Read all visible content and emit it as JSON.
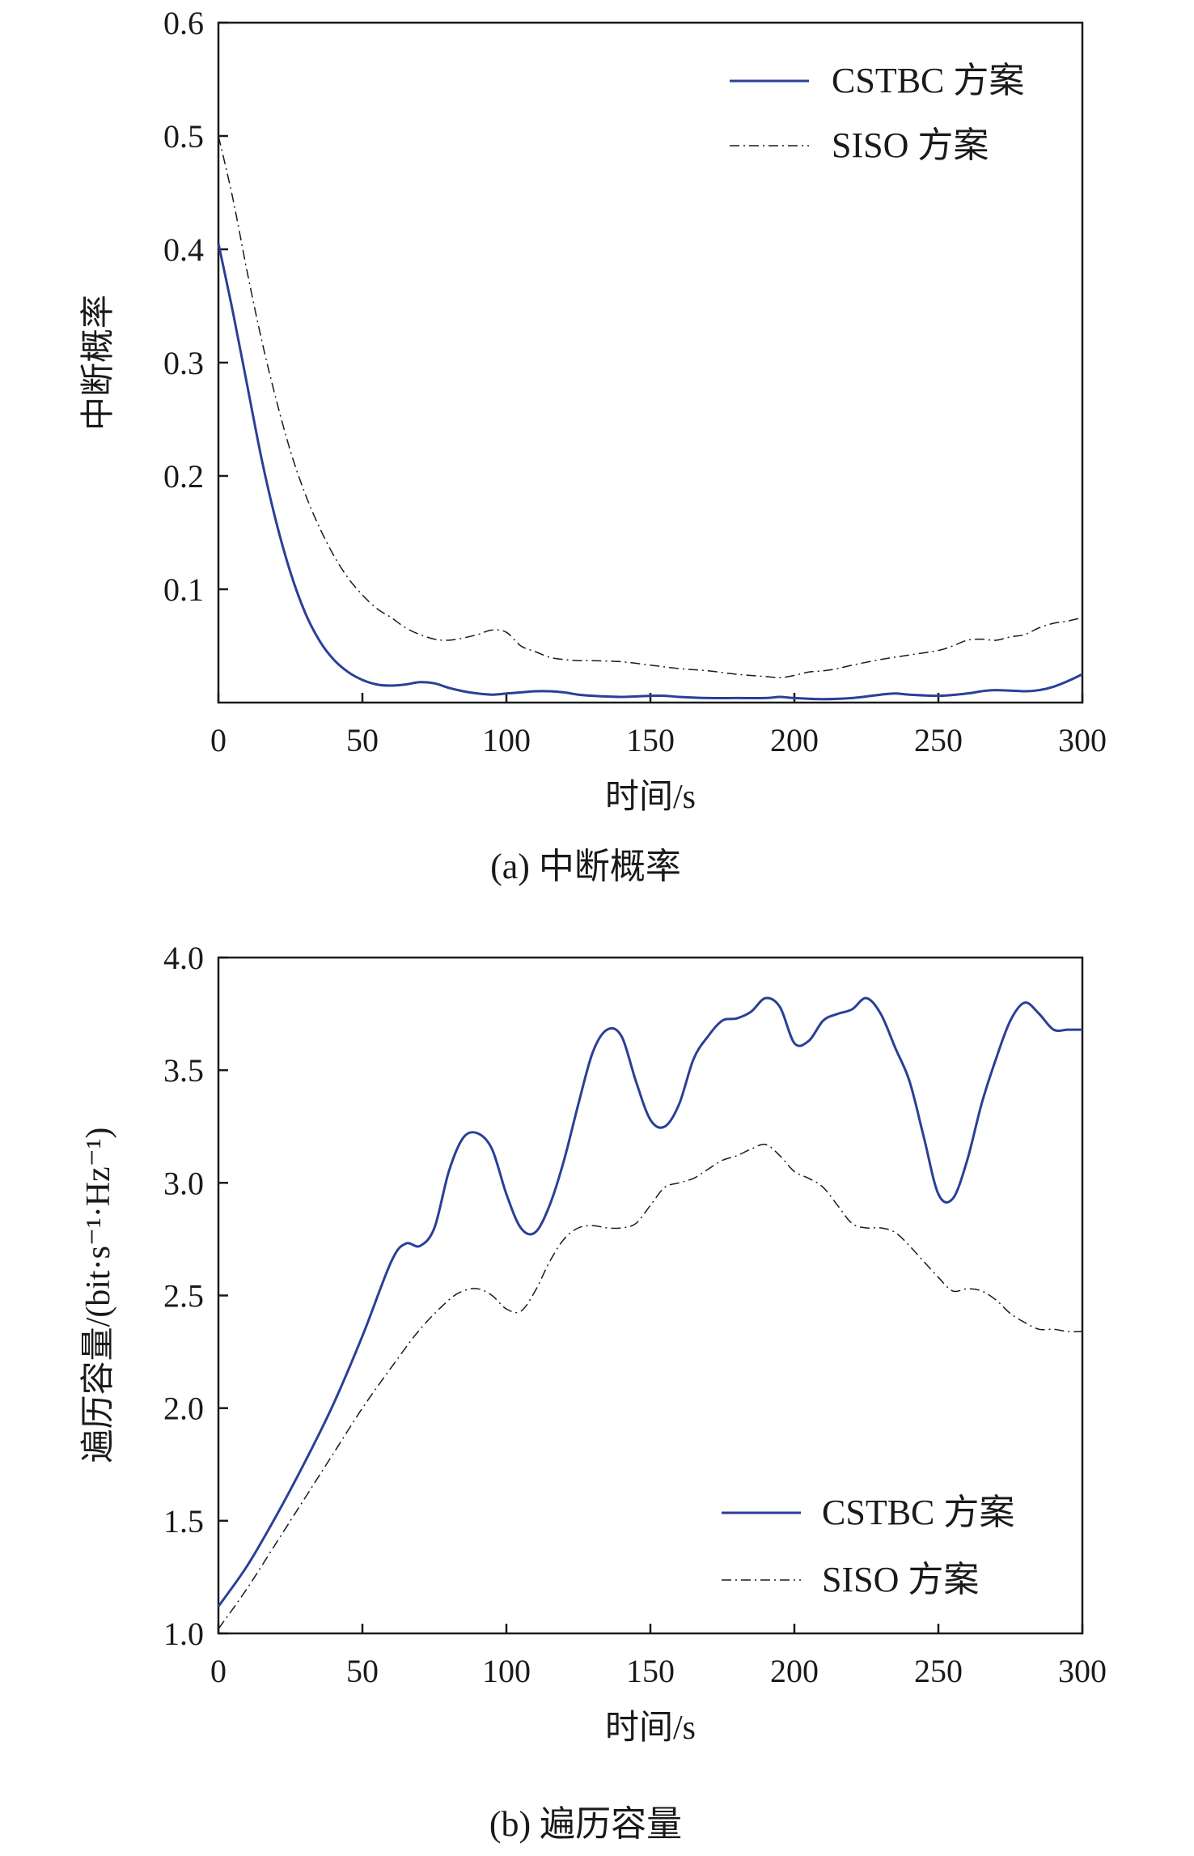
{
  "colors": {
    "cstbc": "#2b3f96",
    "siso": "#1a1a1a",
    "axis": "#1a1a1a"
  },
  "chart_data": [
    {
      "type": "line",
      "caption": "(a) 中断概率",
      "xlabel": "时间/s",
      "ylabel": "中断概率",
      "xlim": [
        0,
        300
      ],
      "ylim": [
        0,
        0.6
      ],
      "xticks": [
        "0",
        "50",
        "100",
        "150",
        "200",
        "250",
        "300"
      ],
      "yticks": [
        "0.1",
        "0.2",
        "0.3",
        "0.4",
        "0.5",
        "0.6"
      ],
      "grid": false,
      "legend_position": "top-right",
      "series": [
        {
          "name": "CSTBC 方案",
          "style": "solid",
          "x": [
            0,
            5,
            10,
            15,
            20,
            25,
            30,
            35,
            40,
            45,
            50,
            55,
            60,
            65,
            70,
            75,
            80,
            85,
            90,
            95,
            100,
            105,
            110,
            115,
            120,
            125,
            130,
            140,
            150,
            155,
            160,
            170,
            180,
            190,
            195,
            200,
            210,
            220,
            230,
            235,
            240,
            250,
            260,
            265,
            270,
            280,
            285,
            290,
            295,
            300
          ],
          "values": [
            0.405,
            0.345,
            0.28,
            0.215,
            0.16,
            0.115,
            0.08,
            0.055,
            0.038,
            0.027,
            0.02,
            0.016,
            0.015,
            0.016,
            0.018,
            0.017,
            0.013,
            0.01,
            0.008,
            0.007,
            0.008,
            0.009,
            0.01,
            0.01,
            0.009,
            0.007,
            0.006,
            0.005,
            0.006,
            0.006,
            0.005,
            0.004,
            0.004,
            0.004,
            0.005,
            0.004,
            0.003,
            0.004,
            0.007,
            0.008,
            0.007,
            0.006,
            0.008,
            0.01,
            0.011,
            0.01,
            0.011,
            0.014,
            0.019,
            0.025
          ]
        },
        {
          "name": "SISO 方案",
          "style": "dashdot",
          "x": [
            0,
            5,
            10,
            15,
            20,
            25,
            30,
            35,
            40,
            45,
            50,
            55,
            60,
            65,
            70,
            75,
            80,
            85,
            90,
            95,
            100,
            105,
            110,
            115,
            120,
            125,
            130,
            140,
            150,
            160,
            170,
            180,
            190,
            195,
            200,
            205,
            210,
            215,
            220,
            230,
            240,
            250,
            255,
            260,
            265,
            270,
            275,
            280,
            285,
            290,
            295,
            300
          ],
          "values": [
            0.5,
            0.445,
            0.38,
            0.32,
            0.268,
            0.222,
            0.185,
            0.155,
            0.13,
            0.11,
            0.095,
            0.083,
            0.075,
            0.066,
            0.06,
            0.056,
            0.055,
            0.057,
            0.06,
            0.064,
            0.062,
            0.05,
            0.045,
            0.04,
            0.038,
            0.037,
            0.037,
            0.036,
            0.033,
            0.03,
            0.028,
            0.025,
            0.023,
            0.022,
            0.024,
            0.027,
            0.028,
            0.03,
            0.033,
            0.038,
            0.042,
            0.046,
            0.05,
            0.055,
            0.056,
            0.055,
            0.058,
            0.06,
            0.066,
            0.07,
            0.072,
            0.075
          ]
        }
      ]
    },
    {
      "type": "line",
      "caption": "(b) 遍历容量",
      "xlabel": "时间/s",
      "ylabel": "遍历容量/(bit·s⁻¹·Hz⁻¹)",
      "xlim": [
        0,
        300
      ],
      "ylim": [
        1.0,
        4.0
      ],
      "xticks": [
        "0",
        "50",
        "100",
        "150",
        "200",
        "250",
        "300"
      ],
      "yticks": [
        "1.0",
        "1.5",
        "2.0",
        "2.5",
        "3.0",
        "3.5",
        "4.0"
      ],
      "grid": false,
      "legend_position": "bottom-right",
      "series": [
        {
          "name": "CSTBC 方案",
          "style": "solid",
          "x": [
            0,
            10,
            20,
            30,
            40,
            50,
            60,
            65,
            70,
            75,
            80,
            85,
            90,
            95,
            100,
            105,
            110,
            115,
            120,
            125,
            130,
            135,
            140,
            145,
            150,
            155,
            160,
            165,
            170,
            175,
            180,
            185,
            190,
            195,
            200,
            205,
            210,
            215,
            220,
            225,
            230,
            235,
            240,
            245,
            250,
            255,
            260,
            265,
            270,
            275,
            280,
            285,
            290,
            295,
            300
          ],
          "values": [
            1.12,
            1.3,
            1.52,
            1.76,
            2.02,
            2.32,
            2.65,
            2.73,
            2.72,
            2.8,
            3.05,
            3.2,
            3.22,
            3.15,
            2.95,
            2.8,
            2.78,
            2.9,
            3.1,
            3.35,
            3.58,
            3.68,
            3.65,
            3.45,
            3.28,
            3.25,
            3.35,
            3.55,
            3.65,
            3.72,
            3.73,
            3.76,
            3.82,
            3.78,
            3.62,
            3.63,
            3.72,
            3.75,
            3.77,
            3.82,
            3.75,
            3.6,
            3.45,
            3.2,
            2.95,
            2.93,
            3.1,
            3.35,
            3.55,
            3.72,
            3.8,
            3.75,
            3.68,
            3.68,
            3.68
          ]
        },
        {
          "name": "SISO 方案",
          "style": "dashdot",
          "x": [
            0,
            10,
            20,
            30,
            40,
            50,
            60,
            70,
            80,
            85,
            90,
            95,
            100,
            105,
            110,
            115,
            120,
            125,
            130,
            135,
            140,
            145,
            150,
            155,
            160,
            165,
            170,
            175,
            180,
            185,
            190,
            195,
            200,
            205,
            210,
            215,
            220,
            225,
            230,
            235,
            240,
            245,
            250,
            255,
            260,
            265,
            270,
            275,
            280,
            285,
            290,
            295,
            300
          ],
          "values": [
            1.02,
            1.2,
            1.4,
            1.6,
            1.8,
            2.0,
            2.18,
            2.35,
            2.48,
            2.52,
            2.53,
            2.5,
            2.44,
            2.43,
            2.52,
            2.65,
            2.75,
            2.8,
            2.81,
            2.8,
            2.8,
            2.82,
            2.9,
            2.98,
            3.0,
            3.02,
            3.06,
            3.1,
            3.12,
            3.15,
            3.17,
            3.12,
            3.05,
            3.02,
            2.98,
            2.9,
            2.82,
            2.8,
            2.8,
            2.78,
            2.72,
            2.65,
            2.58,
            2.52,
            2.53,
            2.52,
            2.48,
            2.42,
            2.38,
            2.35,
            2.35,
            2.34,
            2.34
          ]
        }
      ]
    }
  ]
}
